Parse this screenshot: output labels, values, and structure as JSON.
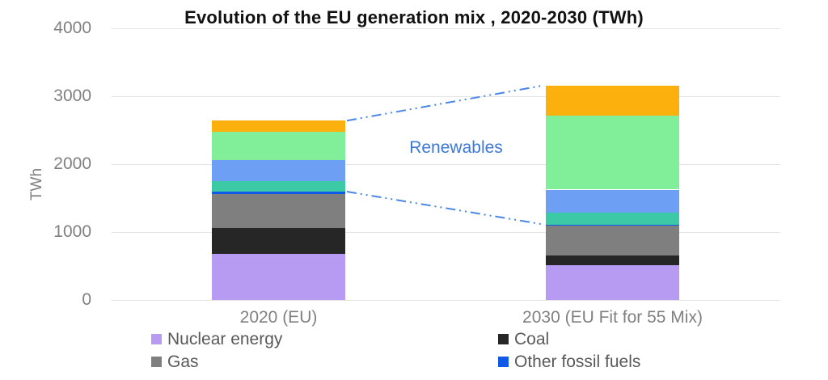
{
  "chart_data": {
    "type": "bar",
    "stacked": true,
    "title": "Evolution of the EU generation mix , 2020-2030 (TWh)",
    "ylabel": "TWh",
    "ylim": [
      0,
      4000
    ],
    "yticks": [
      0,
      1000,
      2000,
      3000,
      4000
    ],
    "grid": true,
    "legend_position": "bottom",
    "categories": [
      "2020 (EU)",
      "2030 (EU Fit for 55 Mix)"
    ],
    "series": [
      {
        "name": "Nuclear energy",
        "color": "#b79bf2",
        "values": [
          675,
          515
        ]
      },
      {
        "name": "Coal",
        "color": "#262626",
        "values": [
          385,
          145
        ]
      },
      {
        "name": "Gas",
        "color": "#7f7f7f",
        "values": [
          495,
          430
        ]
      },
      {
        "name": "Other fossil fuels",
        "color": "#0f5be8",
        "values": [
          40,
          20
        ]
      },
      {
        "name": "Renewables teal segment",
        "color": "#3bcaa5",
        "values": [
          155,
          170
        ]
      },
      {
        "name": "Renewables blue segment",
        "color": "#6d9ff5",
        "values": [
          315,
          345
        ]
      },
      {
        "name": "Renewables green segment",
        "color": "#81ee9a",
        "values": [
          415,
          1095
        ]
      },
      {
        "name": "Renewables orange segment",
        "color": "#fcb00e",
        "values": [
          160,
          440
        ]
      }
    ],
    "totals": [
      2640,
      3160
    ],
    "annotation": {
      "label": "Renewables",
      "text_color": "#3c78d8",
      "line_color": "#4a86e8",
      "renewables_start_series_index": 4
    },
    "legend_columns": [
      [
        {
          "label": "Nuclear energy",
          "color": "#b79bf2"
        },
        {
          "label": "Gas",
          "color": "#7f7f7f"
        }
      ],
      [
        {
          "label": "Coal",
          "color": "#262626"
        },
        {
          "label": "Other fossil fuels",
          "color": "#0f5be8"
        }
      ]
    ]
  }
}
